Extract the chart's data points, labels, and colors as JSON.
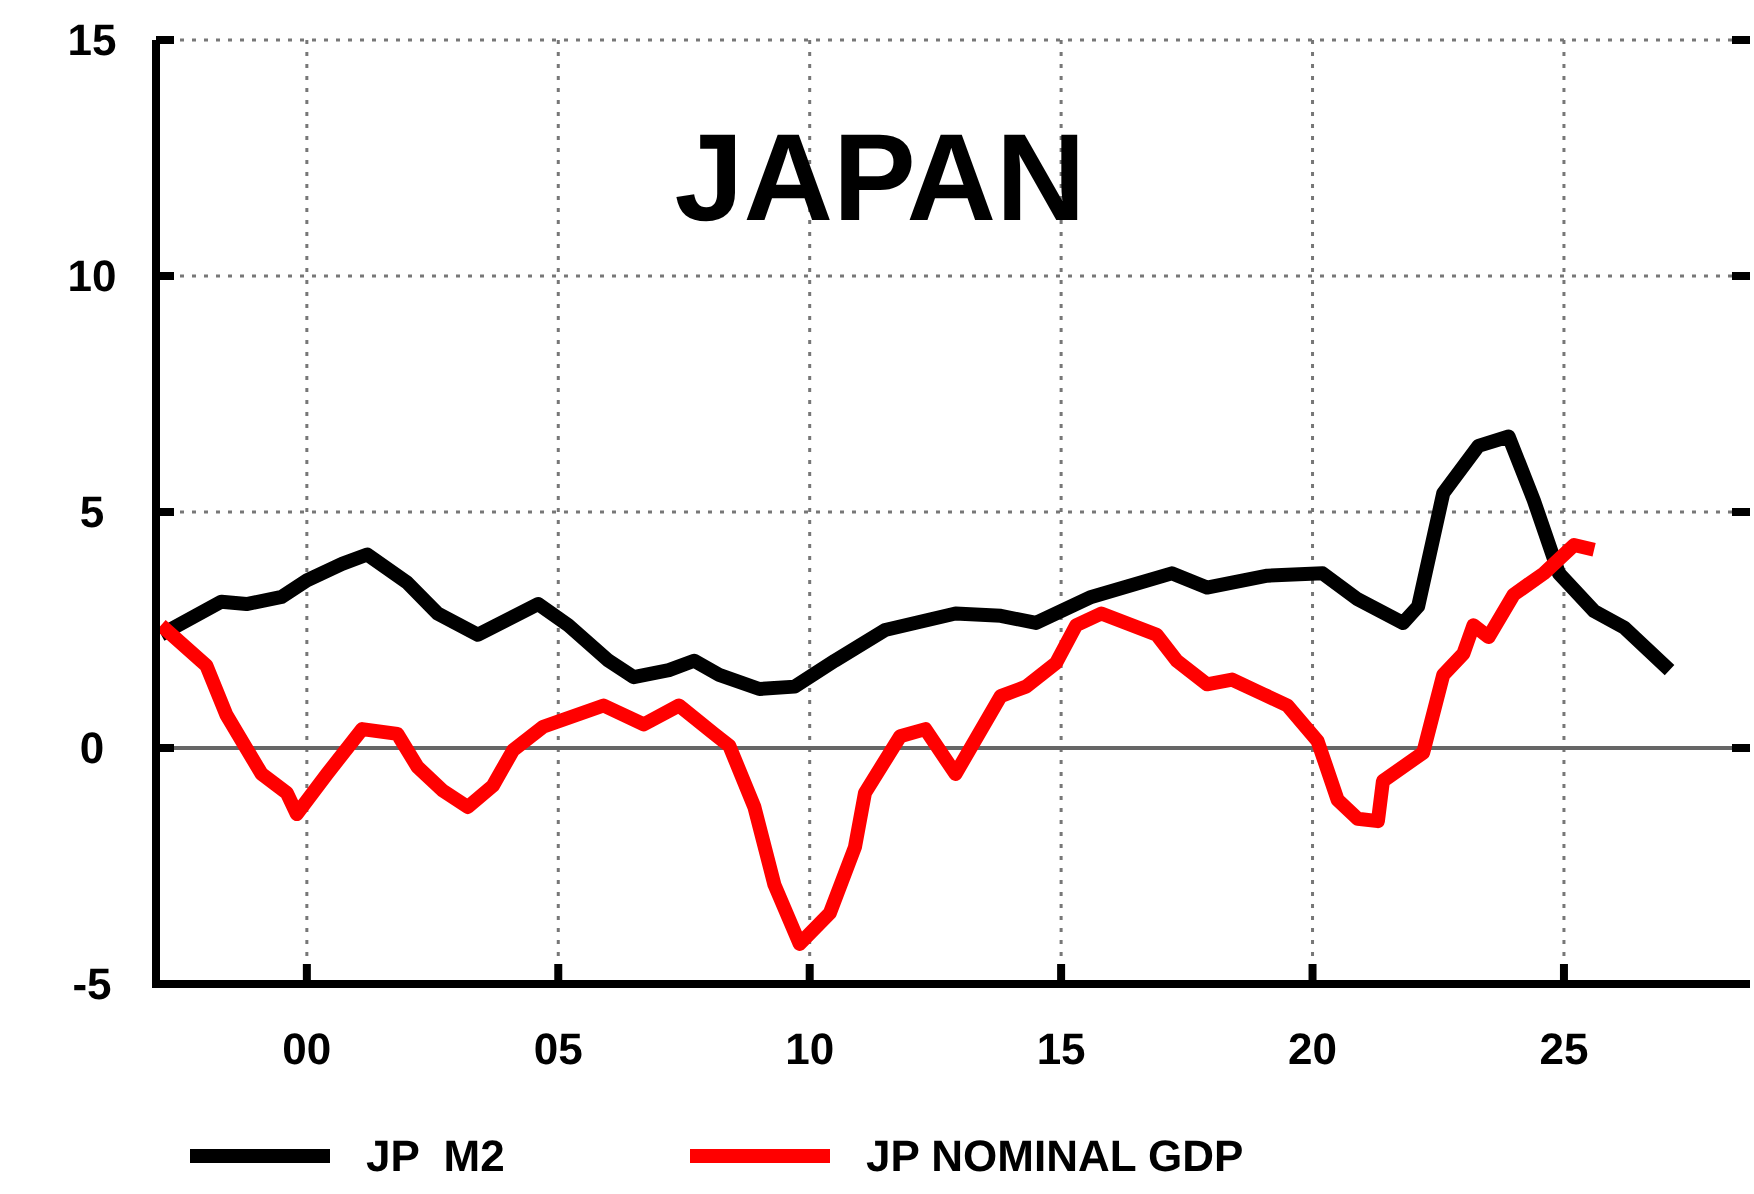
{
  "chart_data": {
    "type": "line",
    "title": "JAPAN",
    "xlim": [
      1997,
      2028.7
    ],
    "ylim": [
      -5,
      15
    ],
    "xticks": [
      {
        "value": 2000,
        "label": "00"
      },
      {
        "value": 2005,
        "label": "05"
      },
      {
        "value": 2010,
        "label": "10"
      },
      {
        "value": 2015,
        "label": "15"
      },
      {
        "value": 2020,
        "label": "20"
      },
      {
        "value": 2025,
        "label": "25"
      }
    ],
    "yticks": [
      -5,
      0,
      5,
      10,
      15
    ],
    "grid": true,
    "legend": "bottom",
    "line_style": "solid",
    "marker": "none",
    "ref_lines": [
      {
        "axis": "y",
        "value": 0,
        "color": "#666666"
      }
    ],
    "series": [
      {
        "name": "JP  M2",
        "color": "#000000",
        "x": [
          1997.1,
          1998.3,
          1998.8,
          1999.5,
          2000,
          2000.7,
          2001.2,
          2002,
          2002.6,
          2003.4,
          2004.6,
          2005.2,
          2006,
          2006.5,
          2007.2,
          2007.7,
          2008.2,
          2009,
          2009.7,
          2010.5,
          2011.5,
          2012.9,
          2013.8,
          2014.5,
          2015.6,
          2017.2,
          2017.9,
          2019.1,
          2020.2,
          2020.9,
          2021.8,
          2022.1,
          2022.6,
          2023.3,
          2023.9,
          2024.4,
          2024.9,
          2025.6,
          2026.2,
          2027.1
        ],
        "values": [
          2.4,
          3.1,
          3.05,
          3.2,
          3.55,
          3.9,
          4.1,
          3.5,
          2.85,
          2.4,
          3.05,
          2.6,
          1.85,
          1.5,
          1.65,
          1.85,
          1.55,
          1.25,
          1.3,
          1.85,
          2.5,
          2.85,
          2.8,
          2.65,
          3.2,
          3.7,
          3.4,
          3.65,
          3.7,
          3.15,
          2.65,
          3.0,
          5.4,
          6.4,
          6.6,
          5.25,
          3.7,
          2.9,
          2.55,
          1.65
        ]
      },
      {
        "name": "JP NOMINAL GDP",
        "color": "#ff0000",
        "x": [
          1997.1,
          1998,
          1998.4,
          1999.1,
          1999.6,
          1999.8,
          2000.4,
          2001.1,
          2001.8,
          2002.2,
          2002.7,
          2003.2,
          2003.7,
          2004.1,
          2004.7,
          2005.9,
          2006.7,
          2007.4,
          2008.1,
          2008.4,
          2008.9,
          2009.3,
          2009.8,
          2010.4,
          2010.9,
          2011.1,
          2011.8,
          2012.3,
          2012.9,
          2013.8,
          2014.3,
          2014.9,
          2015.3,
          2015.8,
          2016.9,
          2017.3,
          2017.9,
          2018.4,
          2019,
          2019.5,
          2020.1,
          2020.5,
          2020.9,
          2021.3,
          2021.4,
          2022.2,
          2022.6,
          2023,
          2023.2,
          2023.5,
          2024,
          2024.6,
          2025.2,
          2025.6
        ],
        "values": [
          2.6,
          1.75,
          0.7,
          -0.55,
          -0.95,
          -1.4,
          -0.55,
          0.4,
          0.3,
          -0.4,
          -0.9,
          -1.25,
          -0.8,
          -0.05,
          0.45,
          0.9,
          0.5,
          0.9,
          0.3,
          0.05,
          -1.25,
          -2.9,
          -4.15,
          -3.5,
          -2.1,
          -0.95,
          0.25,
          0.4,
          -0.55,
          1.1,
          1.3,
          1.8,
          2.6,
          2.85,
          2.4,
          1.85,
          1.35,
          1.45,
          1.15,
          0.9,
          0.15,
          -1.1,
          -1.5,
          -1.55,
          -0.7,
          -0.1,
          1.55,
          2.0,
          2.6,
          2.35,
          3.25,
          3.7,
          4.3,
          4.2
        ]
      }
    ]
  }
}
